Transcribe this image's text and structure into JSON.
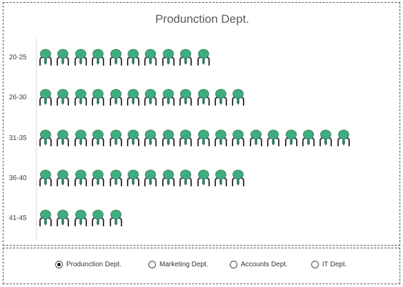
{
  "chart_data": {
    "type": "bar",
    "title": "Produnction Dept.",
    "categories": [
      "20-25",
      "26-30",
      "31-35",
      "36-40",
      "41-45"
    ],
    "values": [
      10,
      12,
      18,
      12,
      5
    ],
    "icon": "person-icon",
    "xlabel": "",
    "ylabel": "",
    "grid": false
  },
  "legend": {
    "options": [
      {
        "label": "Produnction Dept.",
        "selected": true
      },
      {
        "label": "Marketing Dept.",
        "selected": false
      },
      {
        "label": "Accounts Dept.",
        "selected": false
      },
      {
        "label": "IT Dept.",
        "selected": false
      }
    ]
  },
  "colors": {
    "head": "#3fae7e",
    "head_stroke": "#2a6e52",
    "tie": "#2f7f5e",
    "body": "#3a3a3a"
  }
}
